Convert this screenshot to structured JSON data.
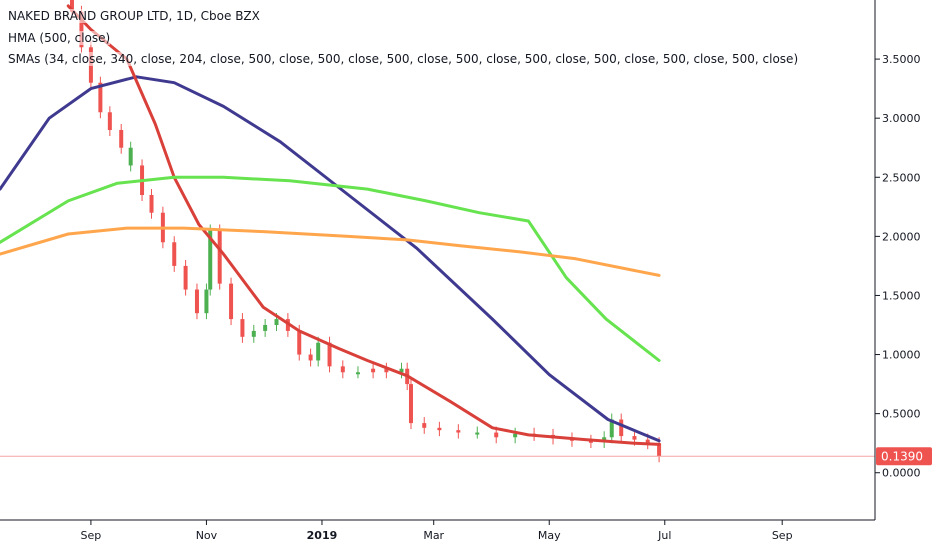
{
  "legend": {
    "title": "NAKED BRAND GROUP LTD, 1D, Cboe BZX",
    "indicator1": "HMA (500, close)",
    "indicator2": "SMAs (34, close, 340, close, 204, close, 500, close, 500, close, 500, close, 500, close, 500, close, 500, close, 500, close, 500, close)"
  },
  "price_label": "0.1390",
  "colors": {
    "candle_up": "#4caf50",
    "candle_down": "#ef5350",
    "hma": "#3f3a8f",
    "sma_red": "#d9403a",
    "sma_green": "#66e34f",
    "sma_orange": "#ffa64d",
    "price_line": "#f4a6a6",
    "price_tag": "#ef5350",
    "axis": "#131722"
  },
  "chart_data": {
    "type": "line",
    "title": "NAKED BRAND GROUP LTD, 1D, Cboe BZX",
    "xlabel": "",
    "ylabel": "",
    "x_axis": {
      "type": "date",
      "range": [
        "2018-07-15",
        "2019-10-20"
      ],
      "ticks": [
        {
          "label": "Sep",
          "date": "2018-09-01",
          "bold": false
        },
        {
          "label": "Nov",
          "date": "2018-11-01",
          "bold": false
        },
        {
          "label": "2019",
          "date": "2019-01-01",
          "bold": true
        },
        {
          "label": "Mar",
          "date": "2019-03-01",
          "bold": false
        },
        {
          "label": "May",
          "date": "2019-05-01",
          "bold": false
        },
        {
          "label": "Jul",
          "date": "2019-07-01",
          "bold": false
        },
        {
          "label": "Sep",
          "date": "2019-09-01",
          "bold": false
        }
      ]
    },
    "y_axis": {
      "range": [
        -0.4,
        4.0
      ],
      "ticks": [
        0.0,
        0.5,
        1.0,
        1.5,
        2.0,
        2.5,
        3.0,
        3.5
      ],
      "tick_labels": [
        "0.0000",
        "0.5000",
        "1.0000",
        "1.5000",
        "2.0000",
        "2.5000",
        "3.0000",
        "3.5000"
      ]
    },
    "last_price": 0.139,
    "series": [
      {
        "key": "hma",
        "style": "line",
        "points": [
          [
            "2018-07-15",
            2.4
          ],
          [
            "2018-08-10",
            3.0
          ],
          [
            "2018-09-01",
            3.25
          ],
          [
            "2018-09-25",
            3.35
          ],
          [
            "2018-10-15",
            3.3
          ],
          [
            "2018-11-10",
            3.1
          ],
          [
            "2018-12-10",
            2.8
          ],
          [
            "2019-01-15",
            2.35
          ],
          [
            "2019-02-20",
            1.9
          ],
          [
            "2019-04-01",
            1.3
          ],
          [
            "2019-05-01",
            0.83
          ],
          [
            "2019-06-01",
            0.45
          ],
          [
            "2019-06-28",
            0.27
          ]
        ]
      },
      {
        "key": "sma_red",
        "style": "line",
        "points": [
          [
            "2018-08-20",
            3.95
          ],
          [
            "2018-09-01",
            3.75
          ],
          [
            "2018-09-20",
            3.5
          ],
          [
            "2018-10-05",
            2.95
          ],
          [
            "2018-10-15",
            2.5
          ],
          [
            "2018-10-28",
            2.1
          ],
          [
            "2018-11-10",
            1.85
          ],
          [
            "2018-12-01",
            1.4
          ],
          [
            "2018-12-20",
            1.2
          ],
          [
            "2019-01-10",
            1.05
          ],
          [
            "2019-01-25",
            0.95
          ],
          [
            "2019-02-15",
            0.82
          ],
          [
            "2019-03-10",
            0.6
          ],
          [
            "2019-04-01",
            0.38
          ],
          [
            "2019-04-20",
            0.32
          ],
          [
            "2019-05-20",
            0.28
          ],
          [
            "2019-06-15",
            0.25
          ],
          [
            "2019-06-28",
            0.24
          ]
        ]
      },
      {
        "key": "sma_green",
        "style": "line",
        "points": [
          [
            "2018-07-15",
            1.95
          ],
          [
            "2018-08-20",
            2.3
          ],
          [
            "2018-09-15",
            2.45
          ],
          [
            "2018-10-15",
            2.5
          ],
          [
            "2018-11-10",
            2.5
          ],
          [
            "2018-12-15",
            2.47
          ],
          [
            "2019-01-25",
            2.4
          ],
          [
            "2019-02-25",
            2.3
          ],
          [
            "2019-03-25",
            2.2
          ],
          [
            "2019-04-20",
            2.13
          ],
          [
            "2019-05-10",
            1.65
          ],
          [
            "2019-05-31",
            1.3
          ],
          [
            "2019-06-28",
            0.95
          ]
        ]
      },
      {
        "key": "sma_orange",
        "style": "line",
        "points": [
          [
            "2018-07-15",
            1.85
          ],
          [
            "2018-08-20",
            2.02
          ],
          [
            "2018-09-20",
            2.07
          ],
          [
            "2018-10-20",
            2.07
          ],
          [
            "2018-12-01",
            2.04
          ],
          [
            "2019-01-15",
            2.0
          ],
          [
            "2019-02-15",
            1.97
          ],
          [
            "2019-03-15",
            1.92
          ],
          [
            "2019-04-15",
            1.87
          ],
          [
            "2019-05-15",
            1.81
          ],
          [
            "2019-06-28",
            1.67
          ]
        ]
      }
    ],
    "candles_approx": {
      "note": "daily closes sampled",
      "points": [
        [
          "2018-08-22",
          3.9,
          "down"
        ],
        [
          "2018-08-27",
          3.6,
          "down"
        ],
        [
          "2018-09-01",
          3.3,
          "down"
        ],
        [
          "2018-09-06",
          3.05,
          "down"
        ],
        [
          "2018-09-11",
          2.9,
          "down"
        ],
        [
          "2018-09-17",
          2.75,
          "down"
        ],
        [
          "2018-09-22",
          2.6,
          "up"
        ],
        [
          "2018-09-28",
          2.35,
          "down"
        ],
        [
          "2018-10-03",
          2.2,
          "down"
        ],
        [
          "2018-10-09",
          1.95,
          "down"
        ],
        [
          "2018-10-15",
          1.75,
          "down"
        ],
        [
          "2018-10-21",
          1.55,
          "down"
        ],
        [
          "2018-10-27",
          1.35,
          "down"
        ],
        [
          "2018-11-01",
          1.55,
          "up"
        ],
        [
          "2018-11-03",
          2.05,
          "up"
        ],
        [
          "2018-11-08",
          1.6,
          "down"
        ],
        [
          "2018-11-14",
          1.3,
          "down"
        ],
        [
          "2018-11-20",
          1.15,
          "down"
        ],
        [
          "2018-11-26",
          1.2,
          "up"
        ],
        [
          "2018-12-02",
          1.25,
          "up"
        ],
        [
          "2018-12-08",
          1.3,
          "up"
        ],
        [
          "2018-12-14",
          1.2,
          "down"
        ],
        [
          "2018-12-20",
          1.0,
          "down"
        ],
        [
          "2018-12-26",
          0.95,
          "down"
        ],
        [
          "2018-12-30",
          1.1,
          "up"
        ],
        [
          "2019-01-05",
          0.9,
          "down"
        ],
        [
          "2019-01-12",
          0.85,
          "down"
        ],
        [
          "2019-01-20",
          0.85,
          "up"
        ],
        [
          "2019-01-28",
          0.88,
          "down"
        ],
        [
          "2019-02-04",
          0.85,
          "down"
        ],
        [
          "2019-02-12",
          0.88,
          "up"
        ],
        [
          "2019-02-15",
          0.75,
          "down"
        ],
        [
          "2019-02-17",
          0.42,
          "down"
        ],
        [
          "2019-02-24",
          0.38,
          "down"
        ],
        [
          "2019-03-04",
          0.36,
          "down"
        ],
        [
          "2019-03-14",
          0.34,
          "down"
        ],
        [
          "2019-03-24",
          0.34,
          "up"
        ],
        [
          "2019-04-03",
          0.3,
          "down"
        ],
        [
          "2019-04-13",
          0.33,
          "up"
        ],
        [
          "2019-04-23",
          0.32,
          "down"
        ],
        [
          "2019-05-03",
          0.29,
          "down"
        ],
        [
          "2019-05-13",
          0.27,
          "down"
        ],
        [
          "2019-05-23",
          0.26,
          "down"
        ],
        [
          "2019-05-30",
          0.3,
          "up"
        ],
        [
          "2019-06-03",
          0.45,
          "up"
        ],
        [
          "2019-06-08",
          0.31,
          "down"
        ],
        [
          "2019-06-15",
          0.28,
          "down"
        ],
        [
          "2019-06-22",
          0.25,
          "down"
        ],
        [
          "2019-06-28",
          0.139,
          "down"
        ]
      ]
    }
  }
}
